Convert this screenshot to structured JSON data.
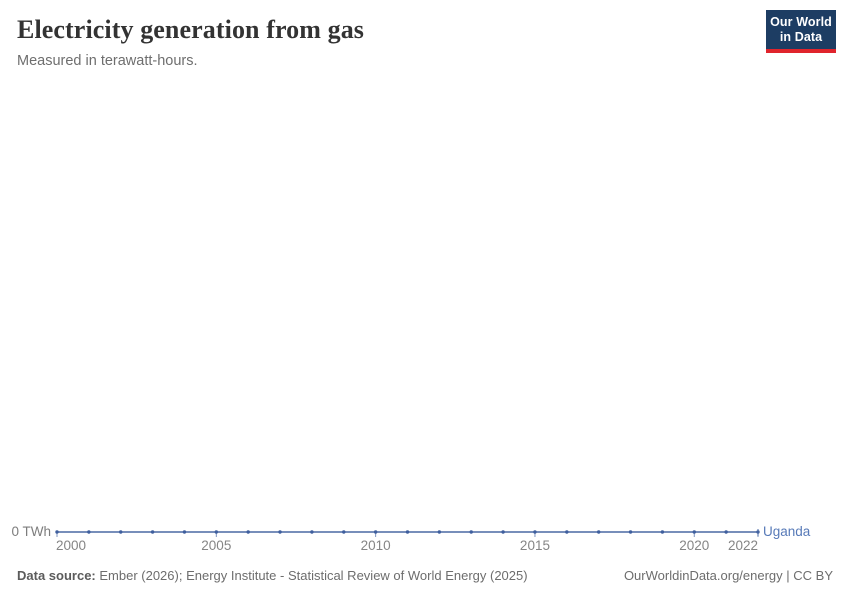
{
  "header": {
    "title": "Electricity generation from gas",
    "subtitle": "Measured in terawatt-hours.",
    "logo": {
      "line1": "Our World",
      "line2": "in Data",
      "bg_color": "#1d3d63",
      "accent_color": "#e0242c"
    }
  },
  "chart_data": {
    "type": "line",
    "title": "Electricity generation from gas",
    "subtitle": "Measured in terawatt-hours.",
    "unit": "TWh",
    "entity_label": "Uganda",
    "x": [
      2000,
      2001,
      2002,
      2003,
      2004,
      2005,
      2006,
      2007,
      2008,
      2009,
      2010,
      2011,
      2012,
      2013,
      2014,
      2015,
      2016,
      2017,
      2018,
      2019,
      2020,
      2021,
      2022
    ],
    "series": [
      {
        "name": "Uganda",
        "values": [
          0,
          0,
          0,
          0,
          0,
          0,
          0,
          0,
          0,
          0,
          0,
          0,
          0,
          0,
          0,
          0,
          0,
          0,
          0,
          0,
          0,
          0,
          0
        ]
      }
    ],
    "xlim": [
      2000,
      2022
    ],
    "x_ticks": [
      2000,
      2005,
      2010,
      2015,
      2020,
      2022
    ],
    "y_ticks": [
      0
    ],
    "y_axis_tick_label": "0 TWh",
    "grid": false,
    "legend_position": "end-of-line",
    "colors": {
      "line": "#4a68a4",
      "dot": "#3f5f9e",
      "tick": "#7d93bf",
      "entity_label": "#577ab8",
      "tick_label": "#858585"
    }
  },
  "footer": {
    "source_label": "Data source:",
    "source_text": " Ember (2026); Energy Institute - Statistical Review of World Energy (2025)",
    "attribution": "OurWorldinData.org/energy | CC BY"
  }
}
